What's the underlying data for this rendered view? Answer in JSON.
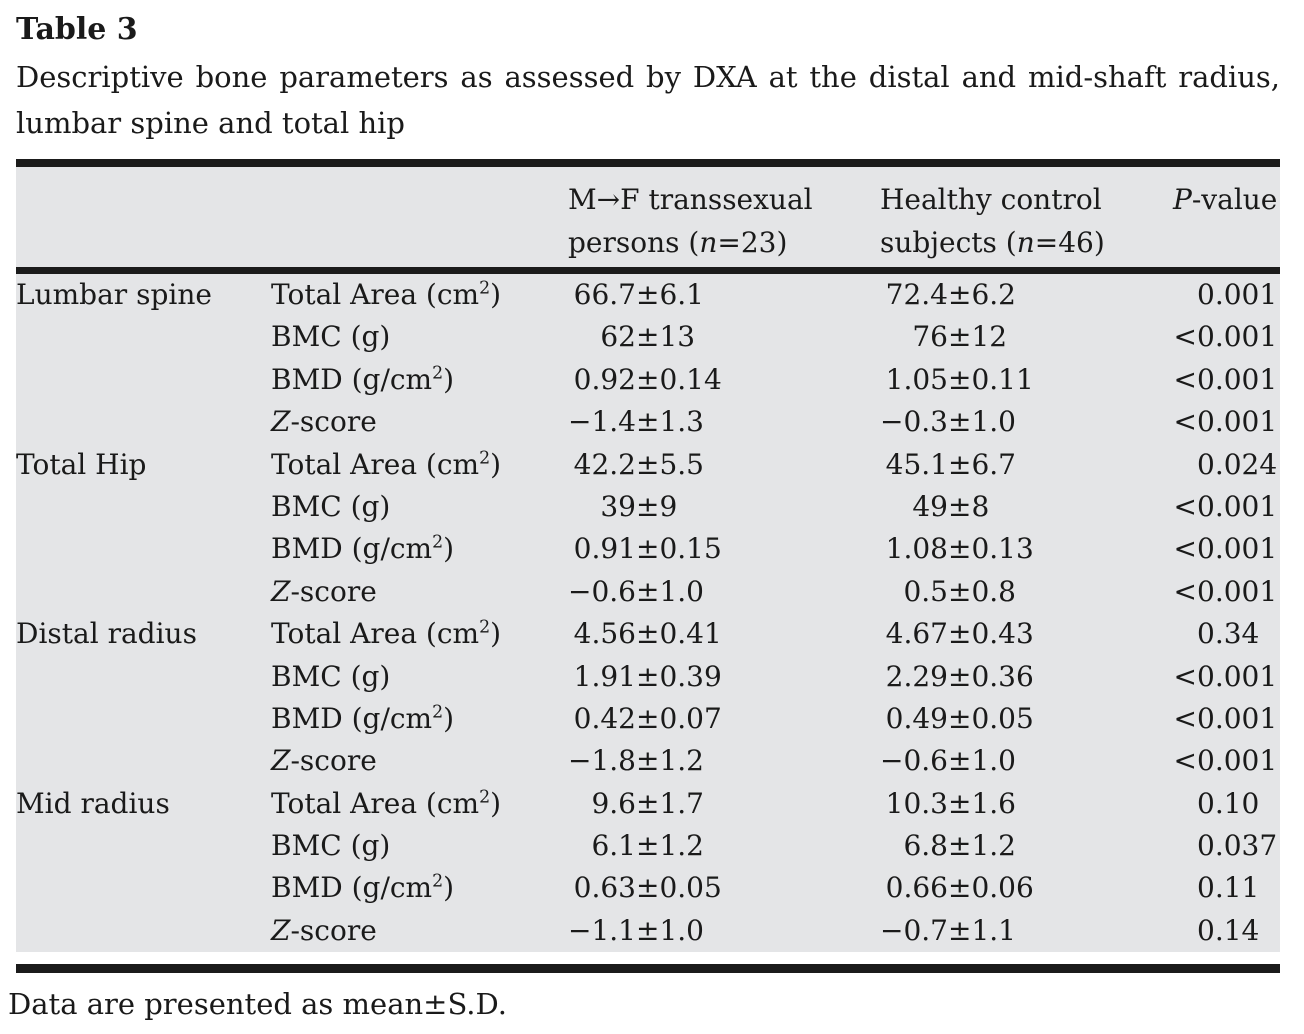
{
  "colors": {
    "table_bg": "#e4e5e7",
    "rule": "#1b1b1b",
    "text": "#1a1a1a",
    "page_bg": "#ffffff"
  },
  "title": "Table 3",
  "caption_line1": "Descriptive bone parameters as assessed by DXA at the distal and mid-shaft radius,",
  "caption_line2": "lumbar spine and total hip",
  "footnote": "Data are presented as mean±S.D.",
  "table": {
    "pm_symbol": "±",
    "header": {
      "col3_line1": "M→F transsexual",
      "col3_line2_pre": "persons (",
      "col3_line2_n": "n",
      "col3_line2_post": "=23)",
      "col4_line1": "Healthy control",
      "col4_line2_pre": "subjects (",
      "col4_line2_n": "n",
      "col4_line2_post": "=46)",
      "col5_italic": "P",
      "col5_rest": "-value"
    },
    "rows": [
      {
        "region": "Lumbar spine",
        "param_i": "",
        "param_a": "Total Area (cm",
        "param_sup": "2",
        "param_b": ")",
        "g1_mean": "66.7",
        "g1_sd": "6.1",
        "g2_mean": "72.4",
        "g2_sd": "6.2",
        "p_lt": "",
        "p_val": "0.001"
      },
      {
        "region": "",
        "param_i": "",
        "param_a": "BMC (g)",
        "param_sup": "",
        "param_b": "",
        "g1_mean": "62",
        "g1_sd": "13",
        "g2_mean": "76",
        "g2_sd": "12",
        "p_lt": "<",
        "p_val": "0.001"
      },
      {
        "region": "",
        "param_i": "",
        "param_a": "BMD (g/cm",
        "param_sup": "2",
        "param_b": ")",
        "g1_mean": "0.92",
        "g1_sd": "0.14",
        "g2_mean": "1.05",
        "g2_sd": "0.11",
        "p_lt": "<",
        "p_val": "0.001"
      },
      {
        "region": "",
        "param_i": "Z",
        "param_a": "-score",
        "param_sup": "",
        "param_b": "",
        "g1_mean": "−1.4",
        "g1_sd": "1.3",
        "g2_mean": "−0.3",
        "g2_sd": "1.0",
        "p_lt": "<",
        "p_val": "0.001"
      },
      {
        "region": "Total Hip",
        "param_i": "",
        "param_a": "Total Area (cm",
        "param_sup": "2",
        "param_b": ")",
        "g1_mean": "42.2",
        "g1_sd": "5.5",
        "g2_mean": "45.1",
        "g2_sd": "6.7",
        "p_lt": "",
        "p_val": "0.024"
      },
      {
        "region": "",
        "param_i": "",
        "param_a": "BMC (g)",
        "param_sup": "",
        "param_b": "",
        "g1_mean": "39",
        "g1_sd": "9",
        "g2_mean": "49",
        "g2_sd": "8",
        "p_lt": "<",
        "p_val": "0.001"
      },
      {
        "region": "",
        "param_i": "",
        "param_a": "BMD (g/cm",
        "param_sup": "2",
        "param_b": ")",
        "g1_mean": "0.91",
        "g1_sd": "0.15",
        "g2_mean": "1.08",
        "g2_sd": "0.13",
        "p_lt": "<",
        "p_val": "0.001"
      },
      {
        "region": "",
        "param_i": "Z",
        "param_a": "-score",
        "param_sup": "",
        "param_b": "",
        "g1_mean": "−0.6",
        "g1_sd": "1.0",
        "g2_mean": "0.5",
        "g2_sd": "0.8",
        "p_lt": "<",
        "p_val": "0.001"
      },
      {
        "region": "Distal radius",
        "param_i": "",
        "param_a": "Total Area (cm",
        "param_sup": "2",
        "param_b": ")",
        "g1_mean": "4.56",
        "g1_sd": "0.41",
        "g2_mean": "4.67",
        "g2_sd": "0.43",
        "p_lt": "",
        "p_val": "0.34"
      },
      {
        "region": "",
        "param_i": "",
        "param_a": "BMC (g)",
        "param_sup": "",
        "param_b": "",
        "g1_mean": "1.91",
        "g1_sd": "0.39",
        "g2_mean": "2.29",
        "g2_sd": "0.36",
        "p_lt": "<",
        "p_val": "0.001"
      },
      {
        "region": "",
        "param_i": "",
        "param_a": "BMD (g/cm",
        "param_sup": "2",
        "param_b": ")",
        "g1_mean": "0.42",
        "g1_sd": "0.07",
        "g2_mean": "0.49",
        "g2_sd": "0.05",
        "p_lt": "<",
        "p_val": "0.001"
      },
      {
        "region": "",
        "param_i": "Z",
        "param_a": "-score",
        "param_sup": "",
        "param_b": "",
        "g1_mean": "−1.8",
        "g1_sd": "1.2",
        "g2_mean": "−0.6",
        "g2_sd": "1.0",
        "p_lt": "<",
        "p_val": "0.001"
      },
      {
        "region": "Mid radius",
        "param_i": "",
        "param_a": "Total Area (cm",
        "param_sup": "2",
        "param_b": ")",
        "g1_mean": "9.6",
        "g1_sd": "1.7",
        "g2_mean": "10.3",
        "g2_sd": "1.6",
        "p_lt": "",
        "p_val": "0.10"
      },
      {
        "region": "",
        "param_i": "",
        "param_a": "BMC (g)",
        "param_sup": "",
        "param_b": "",
        "g1_mean": "6.1",
        "g1_sd": "1.2",
        "g2_mean": "6.8",
        "g2_sd": "1.2",
        "p_lt": "",
        "p_val": "0.037"
      },
      {
        "region": "",
        "param_i": "",
        "param_a": "BMD (g/cm",
        "param_sup": "2",
        "param_b": ")",
        "g1_mean": "0.63",
        "g1_sd": "0.05",
        "g2_mean": "0.66",
        "g2_sd": "0.06",
        "p_lt": "",
        "p_val": "0.11"
      },
      {
        "region": "",
        "param_i": "Z",
        "param_a": "-score",
        "param_sup": "",
        "param_b": "",
        "g1_mean": "−1.1",
        "g1_sd": "1.0",
        "g2_mean": "−0.7",
        "g2_sd": "1.1",
        "p_lt": "",
        "p_val": "0.14"
      }
    ]
  }
}
